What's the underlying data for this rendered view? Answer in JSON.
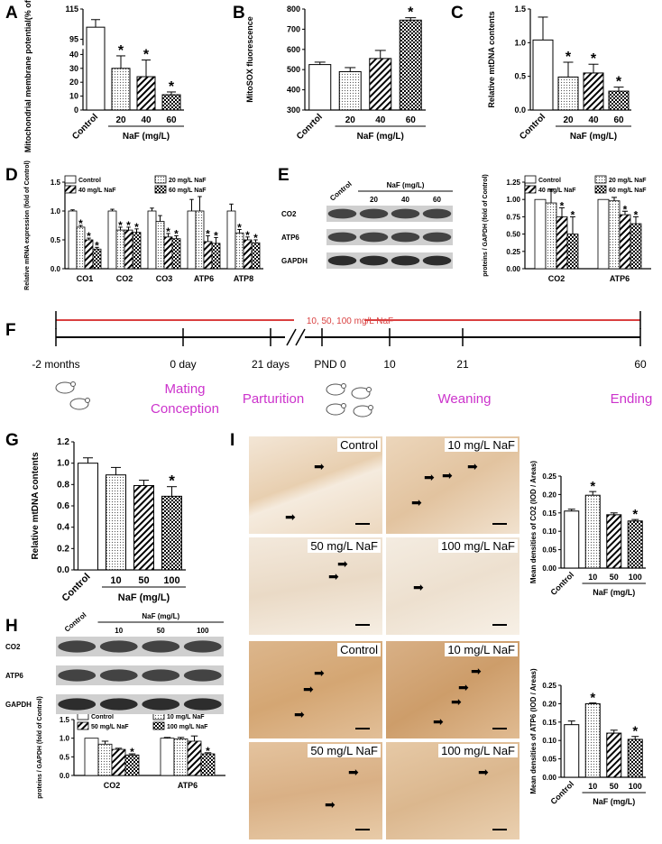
{
  "panel_labels": [
    "A",
    "B",
    "C",
    "D",
    "E",
    "F",
    "G",
    "H",
    "I"
  ],
  "colors": {
    "control": "#ffffff",
    "stroke": "#000000",
    "timeline_red": "#d94040",
    "magenta": "#cc33cc",
    "tissue": "#d9b48c"
  },
  "chart_data": [
    {
      "id": "A",
      "type": "bar",
      "categories": [
        "Control",
        "20",
        "40",
        "60"
      ],
      "values": [
        103,
        30,
        24,
        11
      ],
      "errors": [
        5,
        9,
        12,
        2
      ],
      "sig": [
        false,
        true,
        true,
        true
      ],
      "ylabel": "Mitochondrial membrane potential(% of Control)",
      "yticks": [
        "0",
        "10",
        "20",
        "30",
        "40",
        "95",
        "115"
      ],
      "xgroup_label": "NaF (mg/L)",
      "ylim": [
        0,
        115
      ]
    },
    {
      "id": "B",
      "type": "bar",
      "categories": [
        "Conrtol",
        "20",
        "40",
        "60"
      ],
      "values": [
        525,
        490,
        555,
        745
      ],
      "errors": [
        12,
        20,
        40,
        12
      ],
      "sig": [
        false,
        false,
        false,
        true
      ],
      "ylabel": "MitoSOX fluorescence",
      "yticks": [
        "300",
        "400",
        "500",
        "600",
        "700",
        "800"
      ],
      "xgroup_label": "NaF (mg/L)",
      "ylim": [
        300,
        800
      ]
    },
    {
      "id": "C",
      "type": "bar",
      "categories": [
        "Control",
        "20",
        "40",
        "60"
      ],
      "values": [
        1.04,
        0.49,
        0.55,
        0.28
      ],
      "errors": [
        0.34,
        0.22,
        0.13,
        0.06
      ],
      "sig": [
        false,
        true,
        true,
        true
      ],
      "ylabel": "Relative mtDNA contents",
      "yticks": [
        "0.0",
        "0.5",
        "1.0",
        "1.5"
      ],
      "xgroup_label": "NaF (mg/L)",
      "ylim": [
        0,
        1.5
      ]
    },
    {
      "id": "D",
      "type": "bar",
      "categories": [
        "CO1",
        "CO2",
        "CO3",
        "ATP6",
        "ATP8"
      ],
      "series": [
        {
          "name": "Control",
          "values": [
            1.0,
            1.0,
            1.0,
            1.0,
            1.0
          ],
          "errors": [
            0.02,
            0.03,
            0.05,
            0.2,
            0.12
          ],
          "sig": [
            false,
            false,
            false,
            false,
            false
          ]
        },
        {
          "name": "20 mg/L NaF",
          "values": [
            0.72,
            0.67,
            0.82,
            1.0,
            0.62
          ],
          "errors": [
            0.03,
            0.05,
            0.1,
            0.25,
            0.06
          ],
          "sig": [
            true,
            true,
            false,
            false,
            true
          ]
        },
        {
          "name": "40 mg/L NaF",
          "values": [
            0.5,
            0.67,
            0.55,
            0.47,
            0.5
          ],
          "errors": [
            0.03,
            0.05,
            0.06,
            0.1,
            0.05
          ],
          "sig": [
            true,
            true,
            true,
            true,
            true
          ]
        },
        {
          "name": "60 mg/L NaF",
          "values": [
            0.34,
            0.63,
            0.52,
            0.44,
            0.45
          ],
          "errors": [
            0.03,
            0.06,
            0.05,
            0.1,
            0.05
          ],
          "sig": [
            true,
            true,
            true,
            true,
            true
          ]
        }
      ],
      "ylabel": "Relative mRNA expression (fold of Control)",
      "yticks": [
        "0.0",
        "0.5",
        "1.0",
        "1.5"
      ],
      "ylim": [
        0,
        1.5
      ]
    },
    {
      "id": "E",
      "type": "bar",
      "categories": [
        "CO2",
        "ATP6"
      ],
      "series": [
        {
          "name": "Control",
          "values": [
            1.0,
            1.0
          ],
          "errors": [
            0,
            0
          ],
          "sig": [
            false,
            false
          ]
        },
        {
          "name": "20 mg/L NaF",
          "values": [
            0.95,
            0.98
          ],
          "errors": [
            0.2,
            0.05
          ],
          "sig": [
            false,
            false
          ]
        },
        {
          "name": "40 mg/L NaF",
          "values": [
            0.75,
            0.78
          ],
          "errors": [
            0.13,
            0.05
          ],
          "sig": [
            true,
            true
          ]
        },
        {
          "name": "60 mg/L NaF",
          "values": [
            0.5,
            0.65
          ],
          "errors": [
            0.25,
            0.1
          ],
          "sig": [
            true,
            true
          ]
        }
      ],
      "ylabel": "proteins / GAPDH (fold of Control)",
      "yticks": [
        "0.00",
        "0.25",
        "0.50",
        "0.75",
        "1.00",
        "1.25"
      ],
      "ylim": [
        0,
        1.25
      ]
    },
    {
      "id": "G",
      "type": "bar",
      "categories": [
        "Control",
        "10",
        "50",
        "100"
      ],
      "values": [
        1.0,
        0.89,
        0.79,
        0.69
      ],
      "errors": [
        0.05,
        0.07,
        0.05,
        0.09
      ],
      "sig": [
        false,
        false,
        false,
        true
      ],
      "ylabel": "Relative  mtDNA contents",
      "yticks": [
        "0.0",
        "0.2",
        "0.4",
        "0.6",
        "0.8",
        "1.0",
        "1.2"
      ],
      "xgroup_label": "NaF (mg/L)",
      "ylim": [
        0,
        1.2
      ]
    },
    {
      "id": "H",
      "type": "bar",
      "categories": [
        "CO2",
        "ATP6"
      ],
      "series": [
        {
          "name": "Control",
          "values": [
            1.0,
            1.0
          ],
          "errors": [
            0,
            0.02
          ],
          "sig": [
            false,
            false
          ]
        },
        {
          "name": "10 mg/L NaF",
          "values": [
            0.84,
            0.98
          ],
          "errors": [
            0.08,
            0.04
          ],
          "sig": [
            false,
            false
          ]
        },
        {
          "name": "50 mg/L NaF",
          "values": [
            0.7,
            0.92
          ],
          "errors": [
            0.03,
            0.14
          ],
          "sig": [
            false,
            false
          ]
        },
        {
          "name": "100 mg/L NaF",
          "values": [
            0.55,
            0.58
          ],
          "errors": [
            0.03,
            0.03
          ],
          "sig": [
            true,
            true
          ]
        }
      ],
      "ylabel": "proteins / GAPDH (fold of Control)",
      "yticks": [
        "0.0",
        "0.5",
        "1.0",
        "1.5"
      ],
      "ylim": [
        0,
        1.5
      ]
    },
    {
      "id": "I1",
      "type": "bar",
      "categories": [
        "Control",
        "10",
        "50",
        "100"
      ],
      "values": [
        0.155,
        0.198,
        0.145,
        0.128
      ],
      "errors": [
        0.005,
        0.01,
        0.005,
        0.004
      ],
      "sig": [
        false,
        true,
        false,
        true
      ],
      "ylabel": "Mean densities of CO2 (IOD / Areas)",
      "yticks": [
        "0.00",
        "0.05",
        "0.10",
        "0.15",
        "0.20",
        "0.25"
      ],
      "xgroup_label": "NaF (mg/L)",
      "ylim": [
        0,
        0.25
      ]
    },
    {
      "id": "I2",
      "type": "bar",
      "categories": [
        "Control",
        "10",
        "50",
        "100"
      ],
      "values": [
        0.143,
        0.2,
        0.12,
        0.103
      ],
      "errors": [
        0.01,
        0.002,
        0.008,
        0.008
      ],
      "sig": [
        false,
        true,
        false,
        true
      ],
      "ylabel": "Mean densities of ATP6 (IOD / Areas)",
      "yticks": [
        "0.00",
        "0.05",
        "0.10",
        "0.15",
        "0.20",
        "0.25"
      ],
      "xgroup_label": "NaF (mg/L)",
      "ylim": [
        0,
        0.25
      ]
    }
  ],
  "blotE": {
    "header": "NaF (mg/L)",
    "control": "Control",
    "doses": [
      "20",
      "40",
      "60"
    ],
    "rows": [
      "CO2",
      "ATP6",
      "GAPDH"
    ]
  },
  "blotH": {
    "header": "NaF (mg/L)",
    "control": "Control",
    "doses": [
      "10",
      "50",
      "100"
    ],
    "rows": [
      "CO2",
      "ATP6",
      "GAPDH"
    ]
  },
  "timeline": {
    "exposure": "10, 50, 100 mg/L NaF",
    "times": [
      "-2 months",
      "0 day",
      "21 days",
      "PND 0",
      "10",
      "21",
      "60"
    ],
    "events": [
      "Mating",
      "Conception",
      "Parturition",
      "Weaning",
      "Ending"
    ]
  },
  "micro": {
    "top": [
      "Control",
      "10 mg/L NaF",
      "50 mg/L NaF",
      "100 mg/L NaF"
    ],
    "bottom": [
      "Control",
      "10 mg/L NaF",
      "50 mg/L NaF",
      "100 mg/L NaF"
    ]
  }
}
